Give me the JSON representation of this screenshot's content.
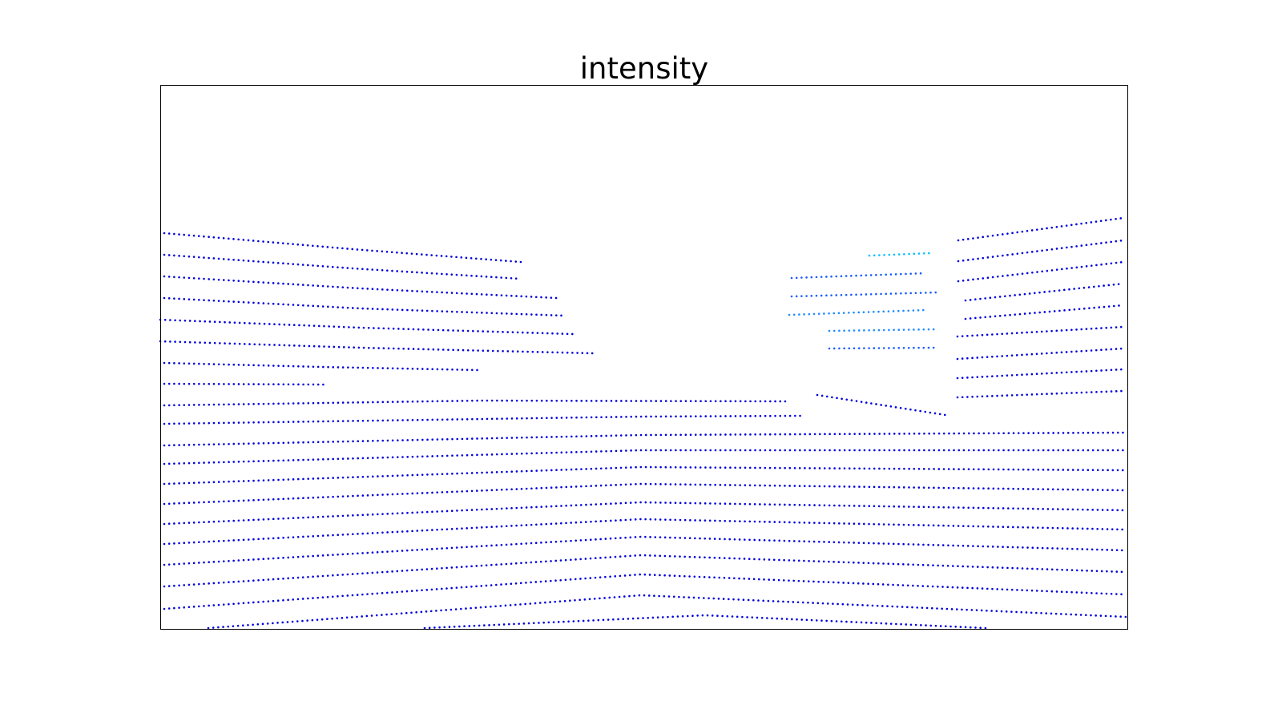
{
  "chart_data": {
    "type": "line",
    "title": "intensity",
    "xlim": [
      200,
      1408
    ],
    "ylim": [
      785,
      106
    ],
    "series": [
      {
        "color": "#0000dd",
        "x": [
          205,
          440,
          650
        ],
        "values": [
          291,
          311,
          327
        ]
      },
      {
        "color": "#0000dd",
        "x": [
          205,
          440,
          650
        ],
        "values": [
          318,
          335,
          348
        ]
      },
      {
        "color": "#0000dd",
        "x": [
          205,
          450,
          695
        ],
        "values": [
          345,
          360,
          372
        ]
      },
      {
        "color": "#0000dd",
        "x": [
          205,
          450,
          705
        ],
        "values": [
          372,
          385,
          394
        ]
      },
      {
        "color": "#0000dd",
        "x": [
          200,
          450,
          715
        ],
        "values": [
          399,
          409,
          417
        ]
      },
      {
        "color": "#0000dd",
        "x": [
          200,
          450,
          740
        ],
        "values": [
          426,
          434,
          441
        ]
      },
      {
        "color": "#0000dd",
        "x": [
          205,
          400,
          600
        ],
        "values": [
          453,
          458,
          462
        ]
      },
      {
        "color": "#0000dd",
        "x": [
          205,
          405
        ],
        "values": [
          479,
          480
        ]
      },
      {
        "color": "#0000dd",
        "x": [
          205,
          600,
          980
        ],
        "values": [
          506,
          500,
          501
        ]
      },
      {
        "color": "#0000dd",
        "x": [
          205,
          800,
          1000
        ],
        "values": [
          529,
          520,
          519
        ]
      },
      {
        "color": "#0000dd",
        "x": [
          205,
          800,
          1405
        ],
        "values": [
          556,
          543,
          540
        ]
      },
      {
        "color": "#0000dd",
        "x": [
          205,
          800,
          1405
        ],
        "values": [
          579,
          562,
          562
        ]
      },
      {
        "color": "#0000dd",
        "x": [
          205,
          800,
          1405
        ],
        "values": [
          604,
          583,
          587
        ]
      },
      {
        "color": "#0000dd",
        "x": [
          205,
          800,
          1405
        ],
        "values": [
          629,
          604,
          612
        ]
      },
      {
        "color": "#0000dd",
        "x": [
          205,
          800,
          1405
        ],
        "values": [
          654,
          627,
          637
        ]
      },
      {
        "color": "#0000dd",
        "x": [
          205,
          800,
          1405
        ],
        "values": [
          679,
          648,
          661
        ]
      },
      {
        "color": "#0000dd",
        "x": [
          205,
          800,
          1405
        ],
        "values": [
          705,
          670,
          687
        ]
      },
      {
        "color": "#0000dd",
        "x": [
          205,
          800,
          1405
        ],
        "values": [
          732,
          693,
          714
        ]
      },
      {
        "color": "#0000dd",
        "x": [
          205,
          800,
          1405
        ],
        "values": [
          760,
          717,
          742
        ]
      },
      {
        "color": "#0000dd",
        "x": [
          260,
          800,
          1405
        ],
        "values": [
          784,
          743,
          770
        ]
      },
      {
        "color": "#0000dd",
        "x": [
          530,
          880,
          1230
        ],
        "values": [
          784,
          768,
          784
        ]
      },
      {
        "color": "#0000dd",
        "x": [
          1196,
          1402
        ],
        "values": [
          300,
          272
        ]
      },
      {
        "color": "#0000dd",
        "x": [
          1196,
          1402
        ],
        "values": [
          326,
          300
        ]
      },
      {
        "color": "#0000dd",
        "x": [
          1196,
          1402
        ],
        "values": [
          351,
          327
        ]
      },
      {
        "color": "#0000dd",
        "x": [
          1205,
          1402
        ],
        "values": [
          375,
          354
        ]
      },
      {
        "color": "#0000dd",
        "x": [
          1205,
          1402
        ],
        "values": [
          398,
          381
        ]
      },
      {
        "color": "#0000dd",
        "x": [
          1195,
          1402
        ],
        "values": [
          420,
          408
        ]
      },
      {
        "color": "#0000dd",
        "x": [
          1195,
          1402
        ],
        "values": [
          448,
          435
        ]
      },
      {
        "color": "#0000dd",
        "x": [
          1195,
          1402
        ],
        "values": [
          472,
          461
        ]
      },
      {
        "color": "#0000dd",
        "x": [
          1195,
          1402
        ],
        "values": [
          496,
          488
        ]
      },
      {
        "color": "#1a5cff",
        "x": [
          988,
          1155
        ],
        "values": [
          347,
          341
        ]
      },
      {
        "color": "#1a5cff",
        "x": [
          988,
          1170
        ],
        "values": [
          370,
          365
        ]
      },
      {
        "color": "#1e8cff",
        "x": [
          985,
          1155
        ],
        "values": [
          393,
          387
        ]
      },
      {
        "color": "#1e8cff",
        "x": [
          1035,
          1170
        ],
        "values": [
          413,
          411
        ]
      },
      {
        "color": "#1a5cff",
        "x": [
          1035,
          1170
        ],
        "values": [
          435,
          434
        ]
      },
      {
        "color": "#0000dd",
        "x": [
          1020,
          1180
        ],
        "values": [
          493,
          518
        ]
      },
      {
        "color": "#00bfff",
        "x": [
          1085,
          1160
        ],
        "values": [
          319,
          316
        ]
      }
    ]
  }
}
